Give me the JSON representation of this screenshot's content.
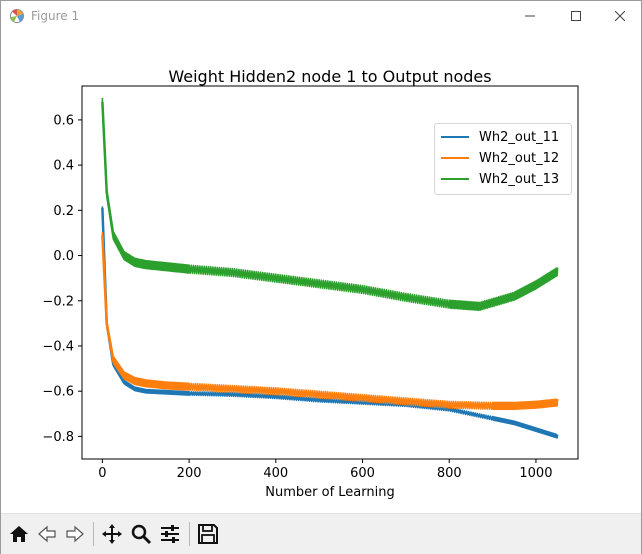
{
  "window": {
    "title": "Figure 1",
    "controls": [
      "minimize",
      "maximize",
      "close"
    ]
  },
  "toolbar": {
    "buttons": [
      "home-icon",
      "back-icon",
      "forward-icon",
      "pan-icon",
      "zoom-icon",
      "configure-subplots-icon",
      "save-icon"
    ]
  },
  "chart_data": {
    "type": "line",
    "title": "Weight Hidden2 node 1 to Output nodes",
    "xlabel": "Number of Learning",
    "ylabel": "",
    "xlim": [
      -47,
      1097
    ],
    "ylim": [
      -0.9,
      0.75
    ],
    "xticks": [
      0,
      200,
      400,
      600,
      800,
      1000
    ],
    "yticks": [
      0.6,
      0.4,
      0.2,
      0.0,
      -0.2,
      -0.4,
      -0.6,
      -0.8
    ],
    "ytick_labels": [
      "0.6",
      "0.4",
      "0.2",
      "0.0",
      "−0.2",
      "−0.4",
      "−0.6",
      "−0.8"
    ],
    "legend_position": "top-right",
    "series": [
      {
        "name": "Wh2_out_11",
        "color": "#1f77b4",
        "x": [
          0,
          10,
          25,
          50,
          75,
          100,
          150,
          200,
          300,
          400,
          500,
          600,
          700,
          800,
          900,
          950,
          1000,
          1050
        ],
        "y": [
          0.21,
          -0.3,
          -0.48,
          -0.56,
          -0.59,
          -0.6,
          -0.605,
          -0.61,
          -0.615,
          -0.625,
          -0.64,
          -0.65,
          -0.66,
          -0.68,
          -0.72,
          -0.74,
          -0.77,
          -0.8
        ],
        "band": 0.015
      },
      {
        "name": "Wh2_out_12",
        "color": "#ff7f0e",
        "x": [
          0,
          10,
          25,
          50,
          75,
          100,
          150,
          200,
          300,
          400,
          500,
          600,
          700,
          800,
          900,
          950,
          1000,
          1050
        ],
        "y": [
          0.09,
          -0.3,
          -0.46,
          -0.53,
          -0.555,
          -0.565,
          -0.575,
          -0.58,
          -0.59,
          -0.6,
          -0.615,
          -0.63,
          -0.645,
          -0.66,
          -0.665,
          -0.665,
          -0.66,
          -0.65
        ],
        "band": 0.03
      },
      {
        "name": "Wh2_out_13",
        "color": "#2ca02c",
        "x": [
          0,
          10,
          25,
          50,
          75,
          100,
          150,
          200,
          300,
          400,
          500,
          600,
          700,
          800,
          870,
          950,
          1000,
          1050
        ],
        "y": [
          0.68,
          0.28,
          0.09,
          0.0,
          -0.03,
          -0.04,
          -0.05,
          -0.06,
          -0.075,
          -0.1,
          -0.125,
          -0.15,
          -0.185,
          -0.215,
          -0.225,
          -0.18,
          -0.13,
          -0.07
        ],
        "band": 0.035
      }
    ]
  }
}
